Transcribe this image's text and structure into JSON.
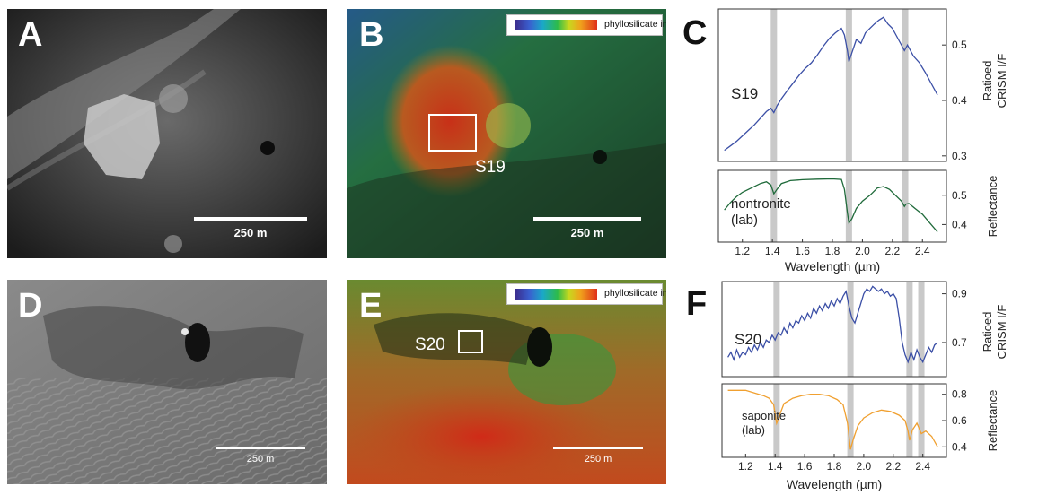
{
  "panels": {
    "A": {
      "letter": "A",
      "scalebar": "250 m"
    },
    "B": {
      "letter": "B",
      "scalebar": "250 m",
      "legend": "phyllosilicate index",
      "roi": "S19"
    },
    "C": {
      "letter": "C"
    },
    "D": {
      "letter": "D",
      "scalebar": "250 m"
    },
    "E": {
      "letter": "E",
      "scalebar": "250 m",
      "legend": "phyllosilicate index",
      "roi": "S20"
    },
    "F": {
      "letter": "F"
    }
  },
  "colors": {
    "crism_line": "#3b4fa6",
    "nontronite_line": "#1f6a3a",
    "saponite_line": "#f0a030",
    "band_shade": "#c9c9c9",
    "axis": "#333333"
  },
  "chart_data": [
    {
      "panel": "C",
      "type": "line",
      "xlabel": "Wavelength (µm)",
      "x_ticks": [
        "1.2",
        "1.4",
        "1.6",
        "1.8",
        "2.0",
        "2.2",
        "2.4"
      ],
      "xlim": [
        1.04,
        2.56
      ],
      "bands": [
        1.41,
        1.91,
        2.285
      ],
      "subplots": [
        {
          "ylabel": "Ratioed CRISM I/F",
          "yticks": [
            "0.3",
            "0.4",
            "0.5"
          ],
          "ylim": [
            0.29,
            0.565
          ],
          "series": [
            {
              "name": "S19",
              "x": [
                1.08,
                1.12,
                1.16,
                1.2,
                1.24,
                1.28,
                1.32,
                1.36,
                1.39,
                1.41,
                1.43,
                1.46,
                1.5,
                1.54,
                1.58,
                1.62,
                1.66,
                1.7,
                1.74,
                1.78,
                1.82,
                1.86,
                1.88,
                1.9,
                1.91,
                1.93,
                1.96,
                1.99,
                2.02,
                2.05,
                2.08,
                2.11,
                2.14,
                2.17,
                2.2,
                2.24,
                2.28,
                2.3,
                2.34,
                2.38,
                2.42,
                2.46,
                2.5
              ],
              "y": [
                0.31,
                0.318,
                0.326,
                0.336,
                0.346,
                0.356,
                0.368,
                0.38,
                0.386,
                0.378,
                0.39,
                0.403,
                0.418,
                0.432,
                0.446,
                0.458,
                0.468,
                0.482,
                0.498,
                0.512,
                0.522,
                0.53,
                0.518,
                0.49,
                0.47,
                0.486,
                0.51,
                0.503,
                0.522,
                0.53,
                0.538,
                0.545,
                0.55,
                0.538,
                0.53,
                0.51,
                0.49,
                0.5,
                0.48,
                0.468,
                0.45,
                0.43,
                0.41
              ]
            }
          ]
        },
        {
          "ylabel": "Reflectance",
          "yticks": [
            "0.4",
            "0.5"
          ],
          "ylim": [
            0.34,
            0.585
          ],
          "series": [
            {
              "name": "nontronite (lab)",
              "x": [
                1.08,
                1.12,
                1.16,
                1.2,
                1.26,
                1.32,
                1.36,
                1.39,
                1.41,
                1.43,
                1.46,
                1.52,
                1.6,
                1.7,
                1.8,
                1.86,
                1.88,
                1.9,
                1.91,
                1.93,
                1.96,
                2.0,
                2.05,
                2.1,
                2.14,
                2.18,
                2.22,
                2.26,
                2.28,
                2.29,
                2.31,
                2.35,
                2.4,
                2.45,
                2.5
              ],
              "y": [
                0.45,
                0.475,
                0.495,
                0.51,
                0.525,
                0.54,
                0.546,
                0.535,
                0.505,
                0.52,
                0.54,
                0.55,
                0.553,
                0.555,
                0.556,
                0.554,
                0.52,
                0.44,
                0.405,
                0.42,
                0.455,
                0.48,
                0.5,
                0.525,
                0.53,
                0.52,
                0.5,
                0.48,
                0.462,
                0.47,
                0.472,
                0.455,
                0.435,
                0.405,
                0.375
              ]
            }
          ]
        }
      ]
    },
    {
      "panel": "F",
      "type": "line",
      "xlabel": "Wavelength (µm)",
      "x_ticks": [
        "1.2",
        "1.4",
        "1.6",
        "1.8",
        "2.0",
        "2.2",
        "2.4"
      ],
      "xlim": [
        1.04,
        2.56
      ],
      "bands": [
        1.41,
        1.91,
        2.31,
        2.39
      ],
      "subplots": [
        {
          "ylabel": "Ratioed CRISM I/F",
          "yticks": [
            "0.7",
            "0.9"
          ],
          "ylim": [
            0.56,
            0.95
          ],
          "series": [
            {
              "name": "S20",
              "x": [
                1.08,
                1.1,
                1.12,
                1.14,
                1.16,
                1.18,
                1.2,
                1.22,
                1.24,
                1.26,
                1.28,
                1.3,
                1.32,
                1.34,
                1.36,
                1.38,
                1.4,
                1.42,
                1.44,
                1.46,
                1.48,
                1.5,
                1.52,
                1.54,
                1.56,
                1.58,
                1.6,
                1.62,
                1.64,
                1.66,
                1.68,
                1.7,
                1.72,
                1.74,
                1.76,
                1.78,
                1.8,
                1.82,
                1.84,
                1.86,
                1.88,
                1.9,
                1.92,
                1.94,
                1.96,
                1.98,
                2.0,
                2.02,
                2.04,
                2.06,
                2.08,
                2.1,
                2.12,
                2.14,
                2.16,
                2.18,
                2.2,
                2.22,
                2.24,
                2.26,
                2.28,
                2.3,
                2.32,
                2.34,
                2.36,
                2.38,
                2.4,
                2.42,
                2.44,
                2.46,
                2.48,
                2.5
              ],
              "y": [
                0.64,
                0.66,
                0.63,
                0.67,
                0.64,
                0.66,
                0.65,
                0.68,
                0.66,
                0.69,
                0.67,
                0.7,
                0.68,
                0.71,
                0.7,
                0.73,
                0.71,
                0.74,
                0.73,
                0.76,
                0.74,
                0.78,
                0.76,
                0.79,
                0.78,
                0.81,
                0.79,
                0.82,
                0.8,
                0.84,
                0.82,
                0.85,
                0.83,
                0.86,
                0.84,
                0.87,
                0.85,
                0.88,
                0.86,
                0.89,
                0.91,
                0.85,
                0.8,
                0.78,
                0.82,
                0.86,
                0.9,
                0.92,
                0.91,
                0.93,
                0.92,
                0.91,
                0.92,
                0.9,
                0.91,
                0.89,
                0.9,
                0.88,
                0.8,
                0.7,
                0.65,
                0.62,
                0.66,
                0.63,
                0.67,
                0.64,
                0.62,
                0.65,
                0.68,
                0.66,
                0.69,
                0.7
              ]
            }
          ]
        },
        {
          "ylabel": "Reflectance",
          "yticks": [
            "0.4",
            "0.6",
            "0.8"
          ],
          "ylim": [
            0.32,
            0.88
          ],
          "series": [
            {
              "name": "saponite (lab)",
              "x": [
                1.08,
                1.14,
                1.2,
                1.26,
                1.32,
                1.36,
                1.39,
                1.41,
                1.43,
                1.46,
                1.52,
                1.58,
                1.64,
                1.7,
                1.76,
                1.82,
                1.86,
                1.89,
                1.91,
                1.93,
                1.96,
                2.0,
                2.06,
                2.12,
                2.18,
                2.24,
                2.28,
                2.3,
                2.31,
                2.33,
                2.36,
                2.39,
                2.42,
                2.46,
                2.5
              ],
              "y": [
                0.83,
                0.83,
                0.83,
                0.81,
                0.79,
                0.77,
                0.72,
                0.58,
                0.64,
                0.73,
                0.77,
                0.79,
                0.8,
                0.8,
                0.79,
                0.76,
                0.72,
                0.58,
                0.38,
                0.46,
                0.56,
                0.62,
                0.66,
                0.68,
                0.67,
                0.64,
                0.6,
                0.52,
                0.45,
                0.53,
                0.58,
                0.5,
                0.52,
                0.48,
                0.4
              ]
            }
          ]
        }
      ]
    }
  ]
}
